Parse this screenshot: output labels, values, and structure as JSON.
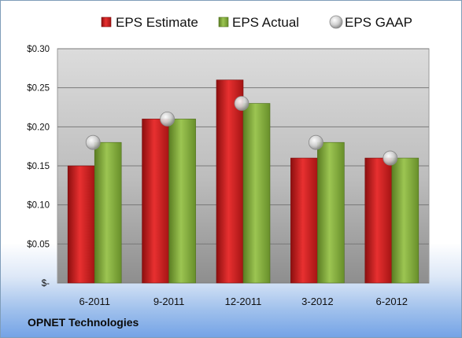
{
  "chart_data": {
    "type": "bar",
    "title": "",
    "xlabel": "",
    "ylabel": "",
    "categories": [
      "6-2011",
      "9-2011",
      "12-2011",
      "3-2012",
      "6-2012"
    ],
    "series": [
      {
        "name": "EPS Estimate",
        "kind": "bar",
        "color": "#c81a1a",
        "values": [
          0.15,
          0.21,
          0.26,
          0.16,
          0.16
        ]
      },
      {
        "name": "EPS Actual",
        "kind": "bar",
        "color": "#7fa83a",
        "values": [
          0.18,
          0.21,
          0.23,
          0.18,
          0.16
        ]
      },
      {
        "name": "EPS GAAP",
        "kind": "marker",
        "color": "#c8c8c8",
        "values": [
          0.18,
          0.21,
          0.23,
          0.18,
          0.16
        ]
      }
    ],
    "ylim": [
      0,
      0.3
    ],
    "yticks": [
      0,
      0.05,
      0.1,
      0.15,
      0.2,
      0.25,
      0.3
    ],
    "ytick_labels": [
      "$-",
      "$0.05",
      "$0.10",
      "$0.15",
      "$0.20",
      "$0.25",
      "$0.30"
    ],
    "legend_position": "top",
    "grid": true
  },
  "footer": {
    "company": "OPNET Technologies"
  }
}
